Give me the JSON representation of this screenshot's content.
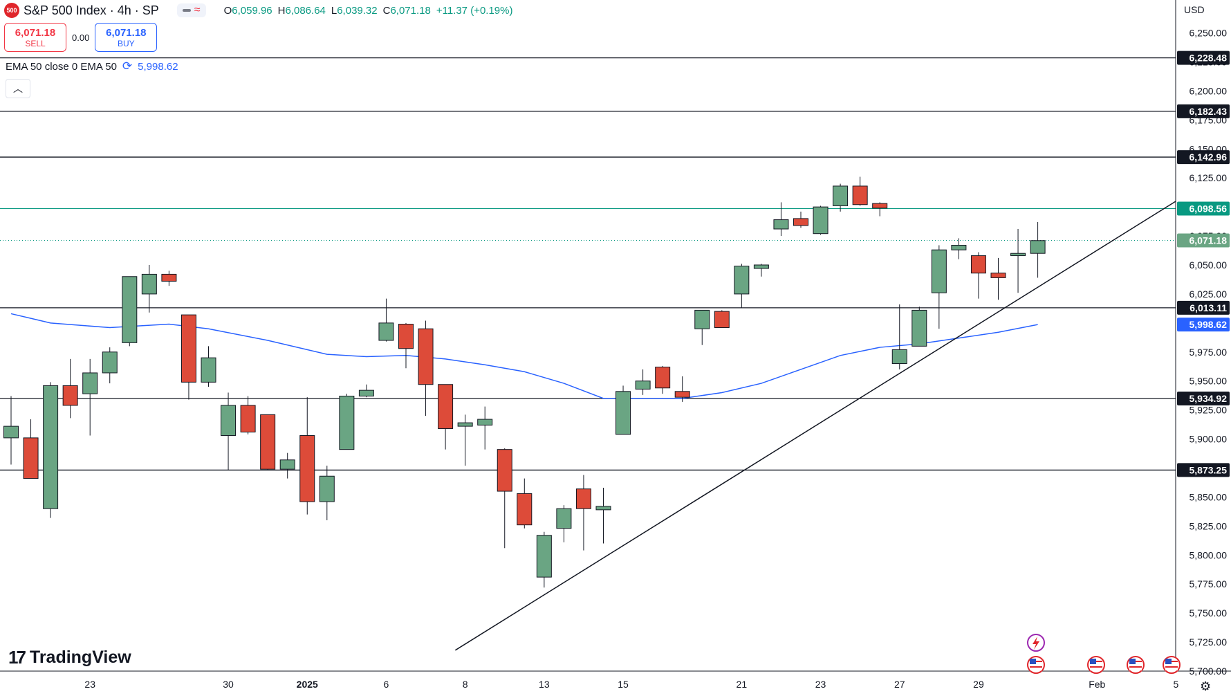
{
  "header": {
    "symbol_badge": "500",
    "title": "S&P 500 Index · 4h · SP",
    "ohlc": {
      "open_label": "O",
      "open": "6,059.96",
      "high_label": "H",
      "high": "6,086.64",
      "low_label": "L",
      "low": "6,039.32",
      "close_label": "C",
      "close": "6,071.18",
      "change": "+11.37 (+0.19%)"
    }
  },
  "trade": {
    "sell_price": "6,071.18",
    "sell_label": "SELL",
    "spread": "0.00",
    "buy_price": "6,071.18",
    "buy_label": "BUY"
  },
  "indicator": {
    "label": "EMA 50 close 0 EMA 50",
    "value": "5,998.62"
  },
  "currency": "USD",
  "brand": "TradingView",
  "colors": {
    "up": "#6aa583",
    "down": "#dd4b39",
    "ema": "#2962ff",
    "teal": "#089981",
    "level": "#131722"
  },
  "chart_data": {
    "type": "candlestick",
    "title": "S&P 500 Index · 4h · SP",
    "ylabel": "USD",
    "ylim": [
      5700,
      6270
    ],
    "y_ticks": [
      "5,700.00",
      "5,725.00",
      "5,750.00",
      "5,775.00",
      "5,800.00",
      "5,825.00",
      "5,850.00",
      "5,875.00",
      "5,900.00",
      "5,925.00",
      "5,950.00",
      "5,975.00",
      "6,000.00",
      "6,025.00",
      "6,050.00",
      "6,075.00",
      "6,100.00",
      "6,125.00",
      "6,150.00",
      "6,175.00",
      "6,200.00",
      "6,225.00",
      "6,250.00"
    ],
    "x_ticks": [
      {
        "label": "23",
        "bar": 4
      },
      {
        "label": "30",
        "bar": 11
      },
      {
        "label": "2025",
        "bar": 15
      },
      {
        "label": "6",
        "bar": 19
      },
      {
        "label": "8",
        "bar": 23
      },
      {
        "label": "13",
        "bar": 27
      },
      {
        "label": "15",
        "bar": 31
      },
      {
        "label": "21",
        "bar": 37
      },
      {
        "label": "23",
        "bar": 41
      },
      {
        "label": "27",
        "bar": 45
      },
      {
        "label": "29",
        "bar": 49
      },
      {
        "label": "Feb",
        "bar": 55
      },
      {
        "label": "5",
        "bar": 59
      }
    ],
    "candles": [
      {
        "o": 5901,
        "h": 5937,
        "l": 5878,
        "c": 5911
      },
      {
        "o": 5901,
        "h": 5917,
        "l": 5866,
        "c": 5866
      },
      {
        "o": 5840,
        "h": 5949,
        "l": 5832,
        "c": 5946
      },
      {
        "o": 5946,
        "h": 5969,
        "l": 5918,
        "c": 5929
      },
      {
        "o": 5939,
        "h": 5969,
        "l": 5903,
        "c": 5957
      },
      {
        "o": 5957,
        "h": 5979,
        "l": 5948,
        "c": 5975
      },
      {
        "o": 5983,
        "h": 6040,
        "l": 5980,
        "c": 6040
      },
      {
        "o": 6025,
        "h": 6050,
        "l": 6009,
        "c": 6042
      },
      {
        "o": 6042,
        "h": 6045,
        "l": 6032,
        "c": 6036
      },
      {
        "o": 6007,
        "h": 6007,
        "l": 5934,
        "c": 5949
      },
      {
        "o": 5949,
        "h": 5980,
        "l": 5945,
        "c": 5970
      },
      {
        "o": 5903,
        "h": 5940,
        "l": 5873,
        "c": 5929
      },
      {
        "o": 5929,
        "h": 5937,
        "l": 5904,
        "c": 5906
      },
      {
        "o": 5921,
        "h": 5921,
        "l": 5873,
        "c": 5874
      },
      {
        "o": 5874,
        "h": 5888,
        "l": 5866,
        "c": 5882
      },
      {
        "o": 5903,
        "h": 5936,
        "l": 5835,
        "c": 5846
      },
      {
        "o": 5846,
        "h": 5877,
        "l": 5830,
        "c": 5868
      },
      {
        "o": 5891,
        "h": 5939,
        "l": 5891,
        "c": 5937
      },
      {
        "o": 5937,
        "h": 5947,
        "l": 5936,
        "c": 5942
      },
      {
        "o": 5985,
        "h": 6021,
        "l": 5984,
        "c": 6000
      },
      {
        "o": 5999,
        "h": 6000,
        "l": 5961,
        "c": 5978
      },
      {
        "o": 5995,
        "h": 6002,
        "l": 5920,
        "c": 5947
      },
      {
        "o": 5947,
        "h": 5946,
        "l": 5891,
        "c": 5909
      },
      {
        "o": 5911,
        "h": 5921,
        "l": 5877,
        "c": 5914
      },
      {
        "o": 5912,
        "h": 5928,
        "l": 5891,
        "c": 5917
      },
      {
        "o": 5891,
        "h": 5892,
        "l": 5806,
        "c": 5855
      },
      {
        "o": 5853,
        "h": 5866,
        "l": 5823,
        "c": 5826
      },
      {
        "o": 5781,
        "h": 5820,
        "l": 5772,
        "c": 5817
      },
      {
        "o": 5823,
        "h": 5843,
        "l": 5811,
        "c": 5840
      },
      {
        "o": 5857,
        "h": 5869,
        "l": 5804,
        "c": 5840
      },
      {
        "o": 5839,
        "h": 5858,
        "l": 5810,
        "c": 5842
      },
      {
        "o": 5904,
        "h": 5946,
        "l": 5904,
        "c": 5941
      },
      {
        "o": 5943,
        "h": 5960,
        "l": 5938,
        "c": 5950
      },
      {
        "o": 5962,
        "h": 5963,
        "l": 5939,
        "c": 5944
      },
      {
        "o": 5941,
        "h": 5954,
        "l": 5932,
        "c": 5936
      },
      {
        "o": 5995,
        "h": 6011,
        "l": 5981,
        "c": 6011
      },
      {
        "o": 6010,
        "h": 6011,
        "l": 5996,
        "c": 5996
      },
      {
        "o": 6025,
        "h": 6051,
        "l": 6013,
        "c": 6049
      },
      {
        "o": 6047,
        "h": 6051,
        "l": 6040,
        "c": 6050
      },
      {
        "o": 6081,
        "h": 6104,
        "l": 6075,
        "c": 6089
      },
      {
        "o": 6090,
        "h": 6096,
        "l": 6082,
        "c": 6084
      },
      {
        "o": 6077,
        "h": 6101,
        "l": 6076,
        "c": 6100
      },
      {
        "o": 6101,
        "h": 6120,
        "l": 6096,
        "c": 6118
      },
      {
        "o": 6118,
        "h": 6126,
        "l": 6101,
        "c": 6102
      },
      {
        "o": 6103,
        "h": 6104,
        "l": 6092,
        "c": 6099
      },
      {
        "o": 5965,
        "h": 6016,
        "l": 5960,
        "c": 5977
      },
      {
        "o": 5980,
        "h": 6014,
        "l": 5980,
        "c": 6011
      },
      {
        "o": 6026,
        "h": 6067,
        "l": 5995,
        "c": 6063
      },
      {
        "o": 6063,
        "h": 6073,
        "l": 6055,
        "c": 6067
      },
      {
        "o": 6058,
        "h": 6061,
        "l": 6021,
        "c": 6043
      },
      {
        "o": 6043,
        "h": 6056,
        "l": 6020,
        "c": 6039
      },
      {
        "o": 6058,
        "h": 6081,
        "l": 6026,
        "c": 6060
      },
      {
        "o": 6060,
        "h": 6087,
        "l": 6039,
        "c": 6071
      }
    ],
    "ema50": [
      {
        "bar": 0,
        "v": 6008
      },
      {
        "bar": 1,
        "v": 6004
      },
      {
        "bar": 2,
        "v": 6000
      },
      {
        "bar": 5,
        "v": 5996
      },
      {
        "bar": 8,
        "v": 5999
      },
      {
        "bar": 10,
        "v": 5995
      },
      {
        "bar": 13,
        "v": 5985
      },
      {
        "bar": 16,
        "v": 5973
      },
      {
        "bar": 18,
        "v": 5971
      },
      {
        "bar": 20,
        "v": 5972
      },
      {
        "bar": 22,
        "v": 5969
      },
      {
        "bar": 24,
        "v": 5964
      },
      {
        "bar": 26,
        "v": 5958
      },
      {
        "bar": 28,
        "v": 5948
      },
      {
        "bar": 30,
        "v": 5935
      },
      {
        "bar": 32,
        "v": 5935
      },
      {
        "bar": 34,
        "v": 5935
      },
      {
        "bar": 36,
        "v": 5940
      },
      {
        "bar": 38,
        "v": 5948
      },
      {
        "bar": 40,
        "v": 5960
      },
      {
        "bar": 42,
        "v": 5972
      },
      {
        "bar": 44,
        "v": 5979
      },
      {
        "bar": 46,
        "v": 5982
      },
      {
        "bar": 48,
        "v": 5987
      },
      {
        "bar": 50,
        "v": 5992
      },
      {
        "bar": 52,
        "v": 5998.62
      }
    ],
    "levels": [
      {
        "value": 6228.48,
        "label": "6,228.48"
      },
      {
        "value": 6182.43,
        "label": "6,182.43"
      },
      {
        "value": 6142.96,
        "label": "6,142.96"
      },
      {
        "value": 6013.11,
        "label": "6,013.11"
      },
      {
        "value": 5934.92,
        "label": "5,934.92"
      },
      {
        "value": 5873.25,
        "label": "5,873.25"
      }
    ],
    "teal_level": {
      "value": 6098.56,
      "label": "6,098.56"
    },
    "last_price": {
      "value": 6071.18,
      "label": "6,071.18"
    },
    "ema_marker": {
      "value": 5998.62,
      "label": "5,998.62"
    },
    "trendline": [
      {
        "bar": 22.5,
        "v": 5718
      },
      {
        "bar": 59,
        "v": 6105
      }
    ]
  }
}
